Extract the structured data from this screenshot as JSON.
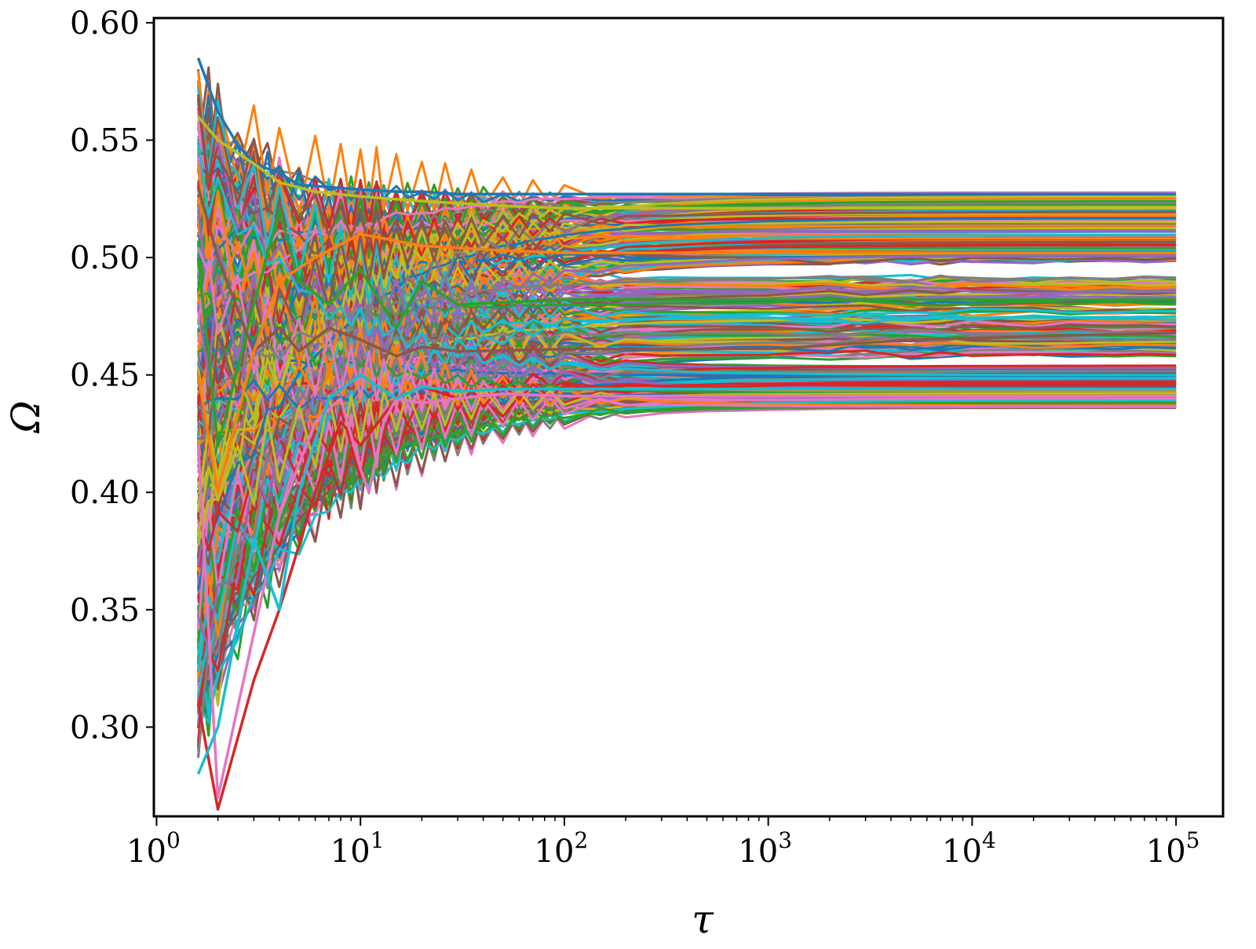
{
  "chart_data": {
    "type": "line",
    "xlabel": "τ",
    "ylabel": "Ω",
    "x_scale": "log",
    "xlim": [
      0.97,
      170000
    ],
    "ylim": [
      0.262,
      0.602
    ],
    "x_ticks": [
      {
        "value": 1,
        "base": "10",
        "exp": "0"
      },
      {
        "value": 10,
        "base": "10",
        "exp": "1"
      },
      {
        "value": 100,
        "base": "10",
        "exp": "2"
      },
      {
        "value": 1000,
        "base": "10",
        "exp": "3"
      },
      {
        "value": 10000,
        "base": "10",
        "exp": "4"
      },
      {
        "value": 100000,
        "base": "10",
        "exp": "5"
      }
    ],
    "y_ticks": [
      {
        "value": 0.3,
        "label": "0.30"
      },
      {
        "value": 0.35,
        "label": "0.35"
      },
      {
        "value": 0.4,
        "label": "0.40"
      },
      {
        "value": 0.45,
        "label": "0.45"
      },
      {
        "value": 0.5,
        "label": "0.50"
      },
      {
        "value": 0.55,
        "label": "0.55"
      },
      {
        "value": 0.6,
        "label": "0.60"
      }
    ],
    "grid": false,
    "legend": "none",
    "palette": [
      "#1f77b4",
      "#ff7f0e",
      "#2ca02c",
      "#d62728",
      "#9467bd",
      "#8c564b",
      "#e377c2",
      "#7f7f7f",
      "#bcbd22",
      "#17becf"
    ],
    "series_summary": {
      "count_estimate": "several hundred",
      "x_start": 1.6,
      "x_end": 100000,
      "initial_range": [
        0.265,
        0.585
      ],
      "final_range": [
        0.436,
        0.528
      ]
    },
    "series": [
      {
        "x": [
          1.6,
          2,
          2.5,
          3,
          4,
          5,
          7,
          10,
          15,
          20,
          30,
          50,
          100,
          1000,
          100000
        ],
        "y": [
          0.585,
          0.562,
          0.548,
          0.54,
          0.536,
          0.531,
          0.53,
          0.529,
          0.528,
          0.528,
          0.527,
          0.527,
          0.527,
          0.527,
          0.527
        ]
      },
      {
        "x": [
          1.6,
          2,
          3,
          4,
          6,
          8,
          10,
          15,
          20,
          30,
          50,
          100,
          1000,
          100000
        ],
        "y": [
          0.31,
          0.265,
          0.32,
          0.35,
          0.4,
          0.43,
          0.42,
          0.44,
          0.445,
          0.44,
          0.442,
          0.441,
          0.441,
          0.441
        ]
      },
      {
        "x": [
          1.6,
          2,
          3,
          4,
          6,
          8,
          10,
          11,
          13,
          15,
          20,
          30,
          50,
          100,
          1000,
          100000
        ],
        "y": [
          0.42,
          0.27,
          0.34,
          0.39,
          0.43,
          0.44,
          0.41,
          0.4,
          0.43,
          0.44,
          0.438,
          0.44,
          0.442,
          0.441,
          0.441,
          0.441
        ]
      },
      {
        "x": [
          1.6,
          2,
          3,
          4,
          5,
          7,
          10,
          15,
          20,
          30,
          50,
          100,
          1000,
          100000
        ],
        "y": [
          0.28,
          0.3,
          0.38,
          0.35,
          0.4,
          0.44,
          0.45,
          0.44,
          0.445,
          0.443,
          0.444,
          0.444,
          0.444,
          0.444
        ]
      },
      {
        "x": [
          1.6,
          2,
          3,
          4,
          5,
          7,
          10,
          15,
          20,
          30,
          100,
          1000,
          100000
        ],
        "y": [
          0.5,
          0.42,
          0.48,
          0.52,
          0.49,
          0.48,
          0.495,
          0.47,
          0.49,
          0.48,
          0.482,
          0.482,
          0.482
        ]
      },
      {
        "x": [
          1.6,
          2,
          3,
          4,
          5,
          7,
          10,
          15,
          20,
          30,
          100,
          1000,
          5000,
          100000
        ],
        "y": [
          0.53,
          0.5,
          0.46,
          0.47,
          0.46,
          0.47,
          0.465,
          0.458,
          0.462,
          0.46,
          0.461,
          0.461,
          0.465,
          0.468
        ]
      },
      {
        "x": [
          1.6,
          2,
          3,
          4,
          6,
          10,
          20,
          50,
          100,
          1000,
          100000
        ],
        "y": [
          0.56,
          0.55,
          0.54,
          0.532,
          0.528,
          0.526,
          0.524,
          0.522,
          0.521,
          0.521,
          0.521
        ]
      },
      {
        "x": [
          1.6,
          2,
          3,
          4,
          6,
          10,
          20,
          50,
          100,
          1000,
          100000
        ],
        "y": [
          0.45,
          0.4,
          0.46,
          0.49,
          0.5,
          0.51,
          0.505,
          0.503,
          0.502,
          0.502,
          0.502
        ]
      }
    ]
  }
}
